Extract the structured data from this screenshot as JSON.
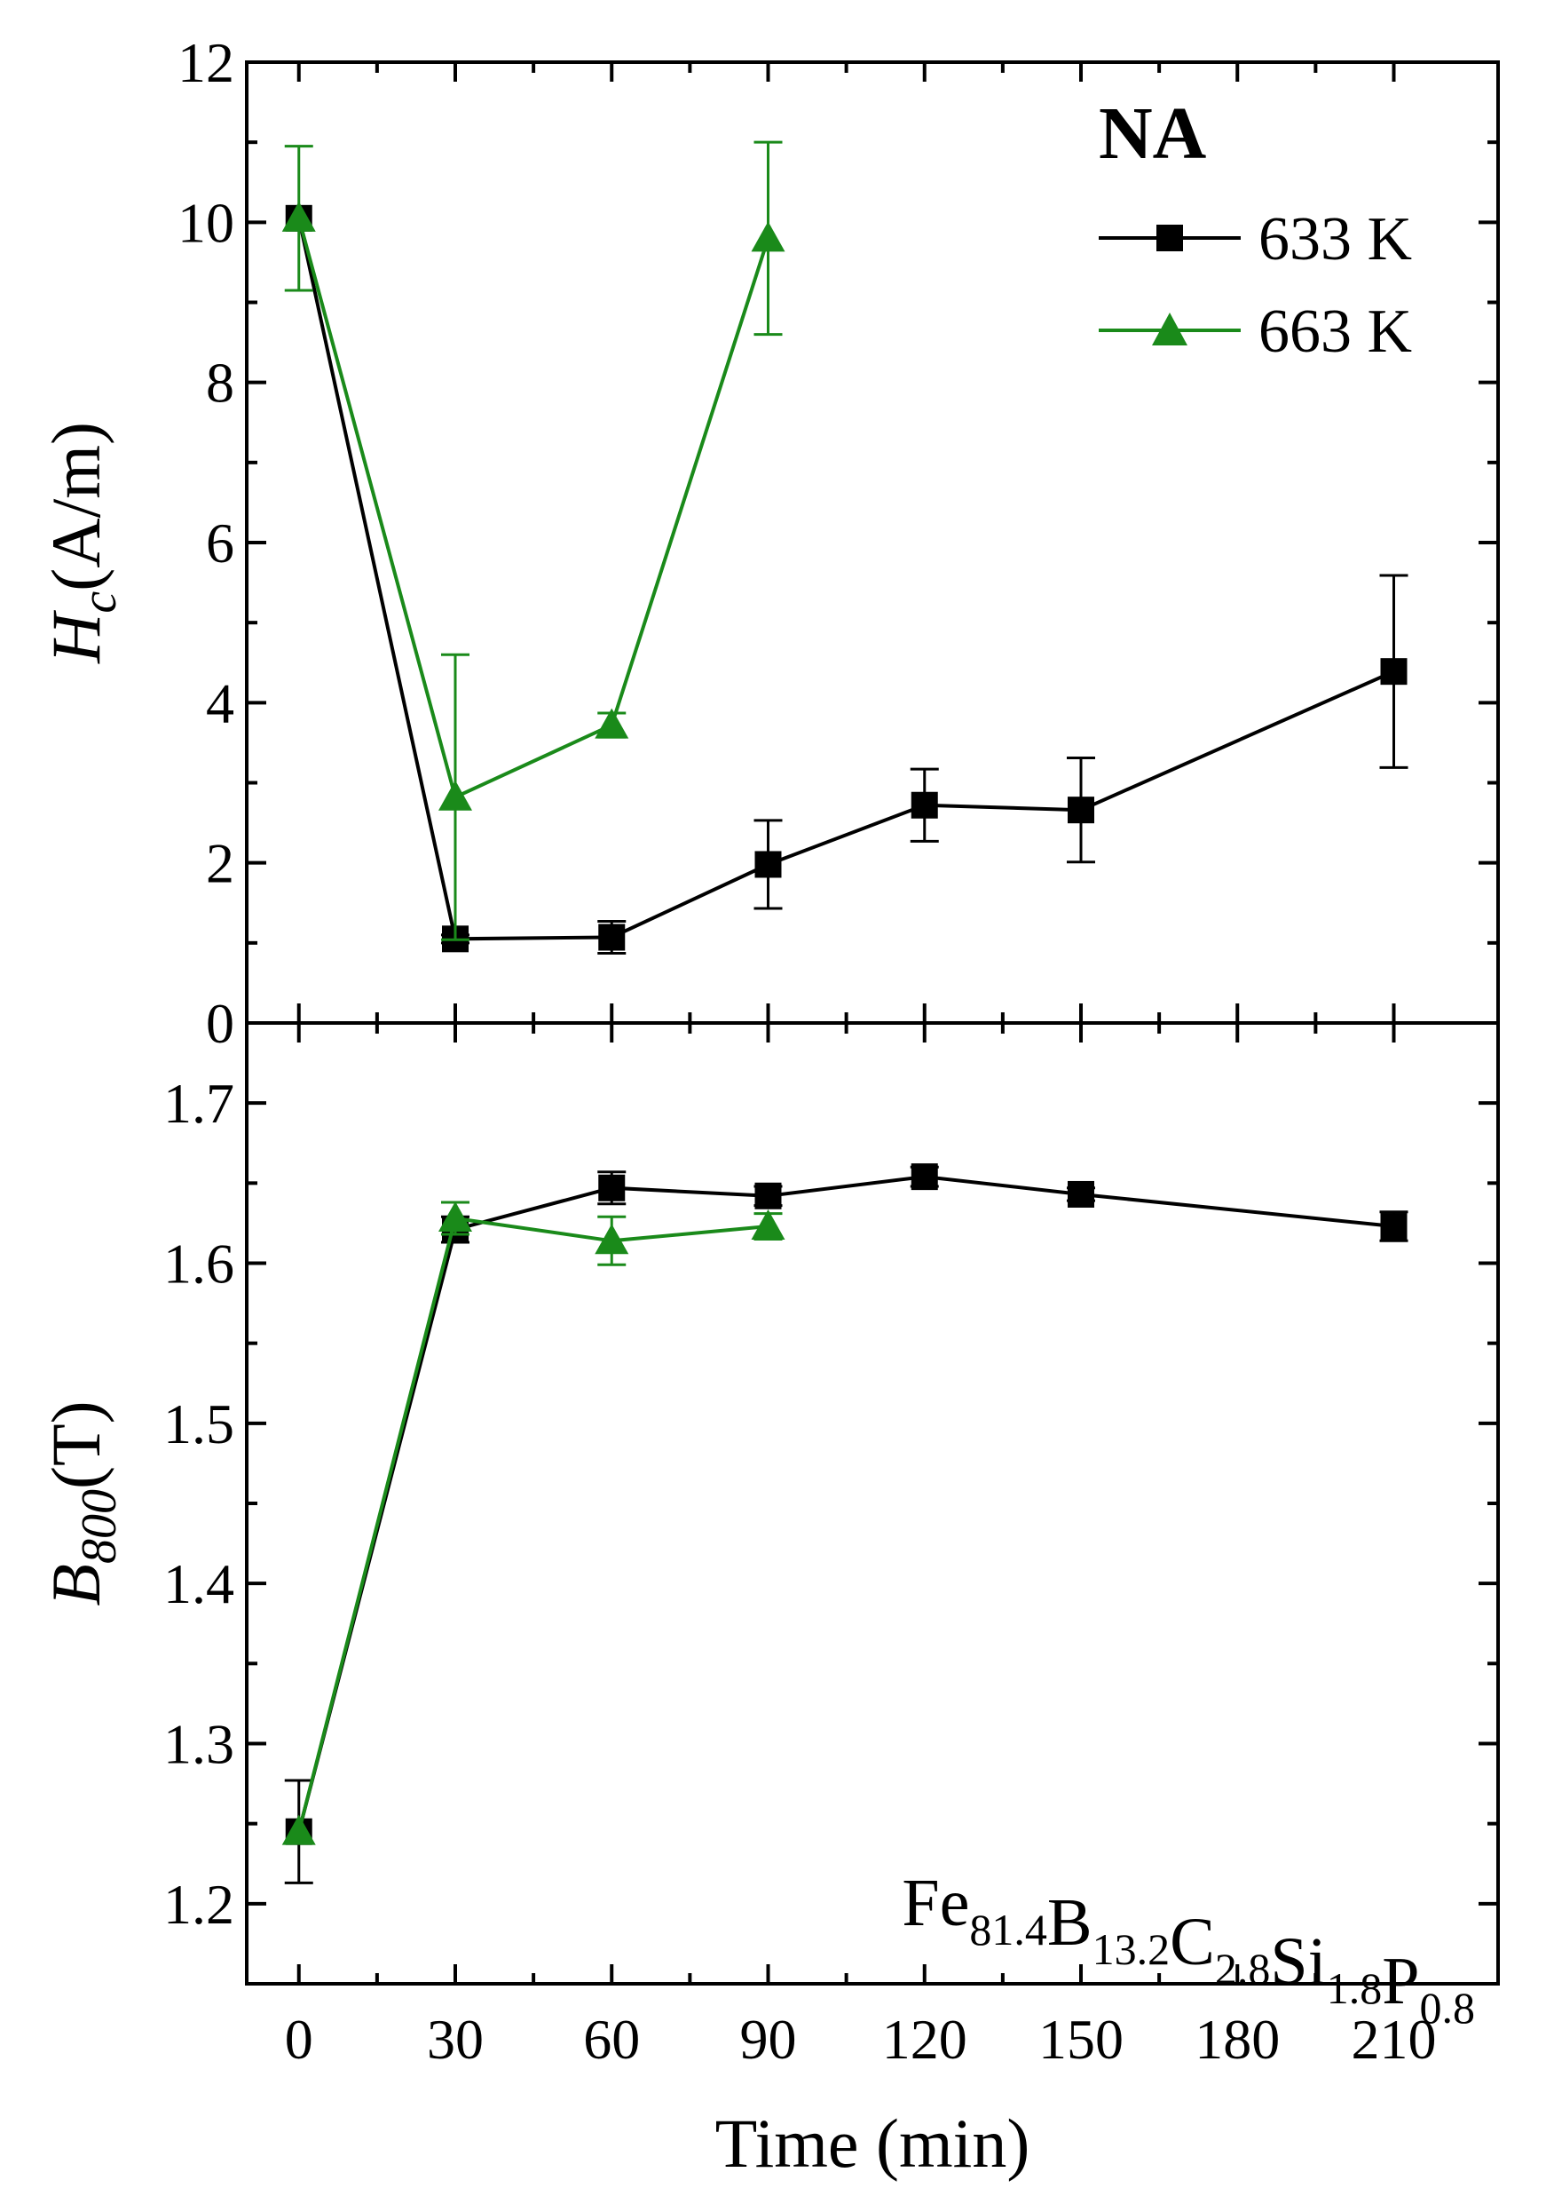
{
  "chart_data": [
    {
      "type": "line",
      "panel": "top",
      "ylabel": {
        "main": "H",
        "sub": "c",
        "unit": "(A/m)"
      },
      "ylim": [
        0,
        12
      ],
      "yticks": [
        0,
        2,
        4,
        6,
        8,
        10,
        12
      ],
      "legend_title": "NA",
      "legend_position": "top-right",
      "series": [
        {
          "name": "633 K",
          "color": "#000000",
          "marker": "square",
          "x": [
            0,
            30,
            60,
            90,
            120,
            150,
            210
          ],
          "y": [
            10.05,
            1.05,
            1.07,
            1.98,
            2.72,
            2.66,
            4.39
          ],
          "err": [
            0.0,
            0.05,
            0.2,
            0.55,
            0.45,
            0.65,
            1.2
          ]
        },
        {
          "name": "663 K",
          "color": "#1a8a1a",
          "marker": "triangle",
          "x": [
            0,
            30,
            60,
            90
          ],
          "y": [
            10.05,
            2.82,
            3.72,
            9.8
          ],
          "err": [
            0.9,
            1.78,
            0.15,
            1.2
          ]
        }
      ]
    },
    {
      "type": "line",
      "panel": "bottom",
      "ylabel": {
        "main": "B",
        "sub": "800",
        "unit": "(T)"
      },
      "ylim": [
        1.15,
        1.75
      ],
      "yticks": [
        1.2,
        1.3,
        1.4,
        1.5,
        1.6,
        1.7
      ],
      "annotation": {
        "parts": [
          {
            "t": "Fe",
            "s": "81.4"
          },
          {
            "t": "B",
            "s": "13.2"
          },
          {
            "t": "C",
            "s": "2.8"
          },
          {
            "t": "Si",
            "s": "1.8"
          },
          {
            "t": "P",
            "s": "0.8"
          }
        ]
      },
      "series": [
        {
          "name": "633 K",
          "color": "#000000",
          "marker": "square",
          "x": [
            0,
            30,
            60,
            90,
            120,
            150,
            210
          ],
          "y": [
            1.245,
            1.621,
            1.647,
            1.642,
            1.654,
            1.643,
            1.623
          ],
          "err": [
            0.032,
            0.008,
            0.01,
            0.006,
            0.006,
            0.004,
            0.009
          ]
        },
        {
          "name": "663 K",
          "color": "#1a8a1a",
          "marker": "triangle",
          "x": [
            0,
            30,
            60,
            90
          ],
          "y": [
            1.245,
            1.628,
            1.614,
            1.623
          ],
          "err": [
            0.0,
            0.01,
            0.015,
            0.008
          ]
        }
      ]
    }
  ],
  "x_axis": {
    "label": "Time (min)",
    "xlim": [
      -10,
      230
    ],
    "ticks": [
      0,
      30,
      60,
      90,
      120,
      150,
      180,
      210
    ],
    "tick_labels": [
      "0",
      "30",
      "60",
      "90",
      "120",
      "150",
      "180",
      "210"
    ]
  }
}
